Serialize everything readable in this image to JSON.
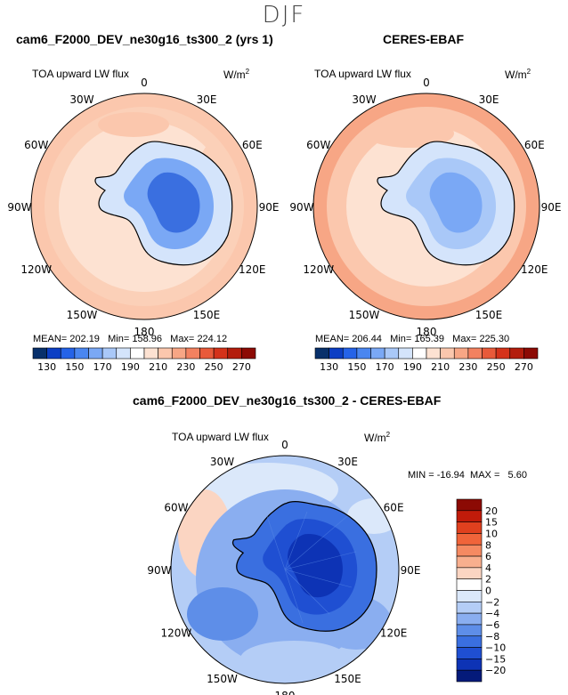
{
  "season": "DJF",
  "panels": [
    {
      "title": "cam6_F2000_DEV_ne30g16_ts300_2 (yrs 1)",
      "variable": "TOA upward LW flux",
      "units_base": "W/m",
      "units_exp": "2",
      "stats": {
        "mean_label": "MEAN=",
        "mean": "202.19",
        "min_label": "Min=",
        "min": "158.96",
        "max_label": "Max=",
        "max": "224.12"
      }
    },
    {
      "title": "CERES-EBAF",
      "variable": "TOA upward LW flux",
      "units_base": "W/m",
      "units_exp": "2",
      "stats": {
        "mean_label": "MEAN=",
        "mean": "206.44",
        "min_label": "Min=",
        "min": "165.39",
        "max_label": "Max=",
        "max": "225.30"
      }
    }
  ],
  "diff": {
    "title": "cam6_F2000_DEV_ne30g16_ts300_2 - CERES-EBAF",
    "variable": "TOA upward LW flux",
    "units_base": "W/m",
    "units_exp": "2",
    "min_label": "MIN =",
    "min": "-16.94",
    "max_label": "MAX =",
    "max": "5.60"
  },
  "map_labels": [
    "0",
    "30E",
    "60E",
    "90E",
    "120E",
    "150E",
    "180",
    "150W",
    "120W",
    "90W",
    "60W",
    "30W"
  ],
  "chart_data": [
    {
      "type": "heatmap",
      "projection": "south-polar-stereographic",
      "title": "cam6_F2000_DEV_ne30g16_ts300_2 (yrs 1)",
      "variable": "TOA upward LW flux",
      "units": "W/m^2",
      "mean": 202.19,
      "min": 158.96,
      "max": 224.12,
      "colorbar_ticks": [
        130,
        150,
        170,
        190,
        210,
        230,
        250,
        270
      ],
      "colors": [
        "#08306b",
        "#0c3ec4",
        "#2563e8",
        "#4a86f0",
        "#7aa8f5",
        "#a9c8f8",
        "#d4e4fb",
        "#ffffff",
        "#fde2d2",
        "#fbc7ad",
        "#f7a685",
        "#f28160",
        "#e85a3a",
        "#d4321a",
        "#b31d0c",
        "#8c0a04"
      ]
    },
    {
      "type": "heatmap",
      "projection": "south-polar-stereographic",
      "title": "CERES-EBAF",
      "variable": "TOA upward LW flux",
      "units": "W/m^2",
      "mean": 206.44,
      "min": 165.39,
      "max": 225.3,
      "colorbar_ticks": [
        130,
        150,
        170,
        190,
        210,
        230,
        250,
        270
      ],
      "colors": [
        "#08306b",
        "#0c3ec4",
        "#2563e8",
        "#4a86f0",
        "#7aa8f5",
        "#a9c8f8",
        "#d4e4fb",
        "#ffffff",
        "#fde2d2",
        "#fbc7ad",
        "#f7a685",
        "#f28160",
        "#e85a3a",
        "#d4321a",
        "#b31d0c",
        "#8c0a04"
      ]
    },
    {
      "type": "heatmap",
      "projection": "south-polar-stereographic",
      "title": "cam6_F2000_DEV_ne30g16_ts300_2 - CERES-EBAF",
      "variable": "TOA upward LW flux",
      "units": "W/m^2",
      "min": -16.94,
      "max": 5.6,
      "colorbar_ticks": [
        "20",
        "15",
        "10",
        "8",
        "6",
        "4",
        "2",
        "0",
        "−2",
        "−4",
        "−6",
        "−8",
        "−10",
        "−15",
        "−20"
      ],
      "colors": [
        "#8c0a04",
        "#c11b0a",
        "#e0401e",
        "#f0643a",
        "#f58a62",
        "#f8af8e",
        "#fbd5c2",
        "#ffffff",
        "#dbe8fa",
        "#b4cdf6",
        "#8aaef0",
        "#5e8ee8",
        "#3a6fe0",
        "#1f4fd2",
        "#0d33b5",
        "#041a7a"
      ]
    }
  ]
}
